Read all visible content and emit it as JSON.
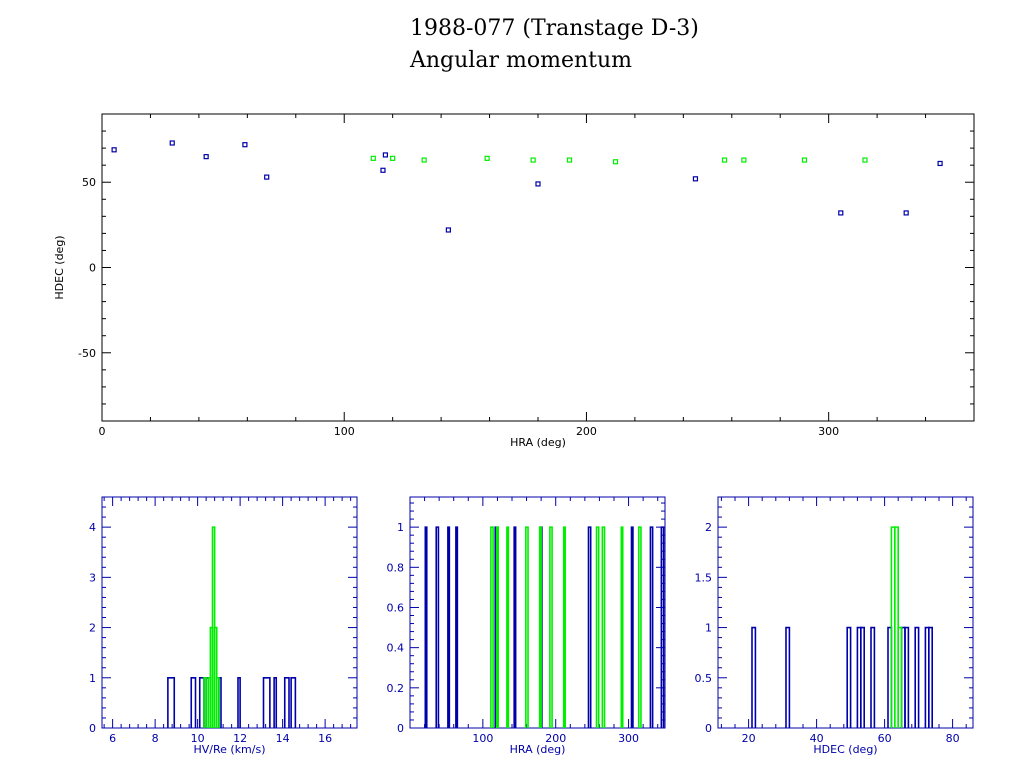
{
  "title": "1988-077 (Transtage D-3)",
  "subtitle": "Angular momentum",
  "colors": {
    "frame": "#000000",
    "blue": "#0000aa",
    "green": "#00ee00",
    "text": "#000000"
  },
  "chart_data": [
    {
      "type": "scatter",
      "xlabel": "HRA (deg)",
      "ylabel": "HDEC (deg)",
      "xlim": [
        0,
        360
      ],
      "ylim": [
        -90,
        90
      ],
      "xticks": [
        "0",
        "100",
        "200",
        "300"
      ],
      "yticks": [
        "50",
        "0",
        "-50"
      ],
      "series": [
        {
          "color": "blue",
          "points": [
            [
              5,
              69
            ],
            [
              29,
              73
            ],
            [
              43,
              65
            ],
            [
              59,
              72
            ],
            [
              68,
              53
            ],
            [
              116,
              57
            ],
            [
              117,
              66
            ],
            [
              143,
              22
            ],
            [
              180,
              49
            ],
            [
              245,
              52
            ],
            [
              305,
              32
            ],
            [
              332,
              32
            ],
            [
              346,
              61
            ]
          ]
        },
        {
          "color": "green",
          "points": [
            [
              112,
              64
            ],
            [
              120,
              64
            ],
            [
              133,
              63
            ],
            [
              159,
              64
            ],
            [
              178,
              63
            ],
            [
              193,
              63
            ],
            [
              212,
              62
            ],
            [
              257,
              63
            ],
            [
              265,
              63
            ],
            [
              290,
              63
            ],
            [
              315,
              63
            ]
          ]
        }
      ]
    },
    {
      "type": "histogram",
      "xlabel": "HV/Re (km/s)",
      "ylabel": "",
      "xlim": [
        5.5,
        17.5
      ],
      "ylim": [
        0,
        4.6
      ],
      "xticks": [
        "6",
        "8",
        "10",
        "12",
        "14",
        "16"
      ],
      "yticks": [
        "0",
        "1",
        "2",
        "3",
        "4"
      ],
      "series": [
        {
          "color": "blue",
          "bins": [
            [
              8.6,
              8.9,
              1
            ],
            [
              9.7,
              9.9,
              1
            ],
            [
              10.1,
              10.3,
              1
            ],
            [
              10.4,
              10.5,
              1
            ],
            [
              11.0,
              11.1,
              1
            ],
            [
              11.9,
              12.0,
              1
            ],
            [
              13.1,
              13.4,
              1
            ],
            [
              13.6,
              13.7,
              1
            ],
            [
              14.1,
              14.3,
              1
            ],
            [
              14.4,
              14.6,
              1
            ]
          ]
        },
        {
          "color": "green",
          "bins": [
            [
              10.3,
              10.4,
              1
            ],
            [
              10.5,
              10.6,
              1
            ],
            [
              10.6,
              10.7,
              2
            ],
            [
              10.7,
              10.8,
              4
            ],
            [
              10.8,
              10.9,
              2
            ],
            [
              10.9,
              11.0,
              1
            ]
          ]
        }
      ]
    },
    {
      "type": "histogram",
      "xlabel": "HRA (deg)",
      "ylabel": "",
      "xlim": [
        0,
        350
      ],
      "ylim": [
        0,
        1.15
      ],
      "xticks": [
        "100",
        "200",
        "300"
      ],
      "yticks": [
        "0",
        "0.2",
        "0.4",
        "0.6",
        "0.8",
        "1"
      ],
      "series": [
        {
          "color": "blue",
          "bins": [
            [
              21,
              23,
              1
            ],
            [
              36,
              39,
              1
            ],
            [
              52,
              54,
              1
            ],
            [
              63,
              65,
              1
            ],
            [
              117,
              120,
              1
            ],
            [
              143,
              145,
              1
            ],
            [
              179,
              181,
              1
            ],
            [
              245,
              248,
              1
            ],
            [
              304,
              306,
              1
            ],
            [
              330,
              333,
              1
            ],
            [
              345,
              348,
              1
            ]
          ]
        },
        {
          "color": "green",
          "bins": [
            [
              111,
              114,
              1
            ],
            [
              119,
              121,
              1
            ],
            [
              133,
              135,
              1
            ],
            [
              159,
              162,
              1
            ],
            [
              178,
              180,
              1
            ],
            [
              192,
              195,
              1
            ],
            [
              211,
              213,
              1
            ],
            [
              256,
              259,
              1
            ],
            [
              264,
              267,
              1
            ],
            [
              290,
              292,
              1
            ],
            [
              314,
              317,
              1
            ]
          ]
        }
      ]
    },
    {
      "type": "histogram",
      "xlabel": "HDEC (deg)",
      "ylabel": "",
      "xlim": [
        11,
        86
      ],
      "ylim": [
        0,
        2.3
      ],
      "xticks": [
        "20",
        "40",
        "60",
        "80"
      ],
      "yticks": [
        "0",
        "0.5",
        "1",
        "1.5",
        "2"
      ],
      "series": [
        {
          "color": "blue",
          "bins": [
            [
              21,
              22,
              1
            ],
            [
              31,
              32,
              1
            ],
            [
              49,
              50,
              1
            ],
            [
              52,
              53,
              1
            ],
            [
              53,
              54,
              1
            ],
            [
              56,
              57,
              1
            ],
            [
              61,
              62,
              1
            ],
            [
              65,
              66,
              1
            ],
            [
              66,
              67,
              1
            ],
            [
              69,
              70,
              1
            ],
            [
              72,
              73,
              1
            ],
            [
              73,
              74,
              1
            ]
          ]
        },
        {
          "color": "green",
          "bins": [
            [
              62,
              63,
              2
            ],
            [
              63,
              64,
              2
            ],
            [
              64,
              65,
              1
            ]
          ]
        }
      ]
    }
  ]
}
